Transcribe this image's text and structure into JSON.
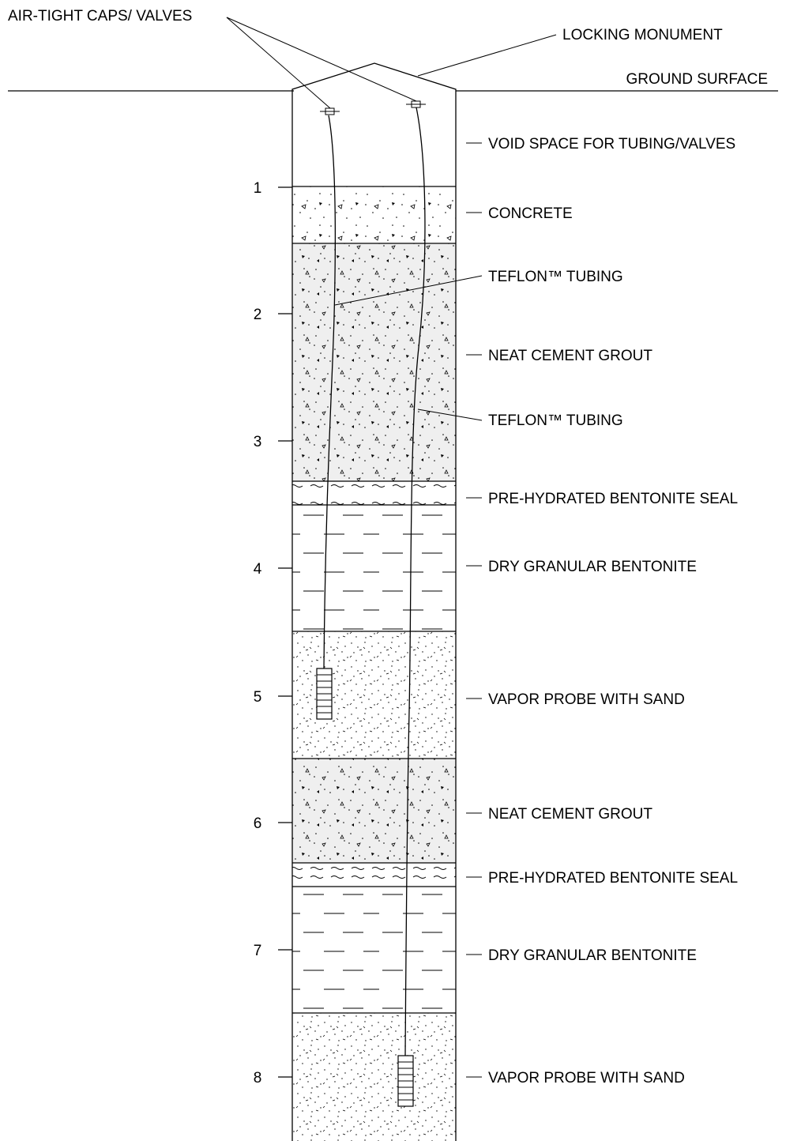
{
  "labels": {
    "caps": "AIR-TIGHT CAPS/ VALVES",
    "monument": "LOCKING MONUMENT",
    "ground": "GROUND SURFACE"
  },
  "layers": [
    {
      "id": "void",
      "label": "VOID SPACE FOR TUBING/VALVES",
      "pattern": "none"
    },
    {
      "id": "concrete",
      "label": "CONCRETE",
      "pattern": "concrete"
    },
    {
      "id": "grout1",
      "label": "NEAT CEMENT GROUT",
      "pattern": "grout"
    },
    {
      "id": "seal1",
      "label": "PRE-HYDRATED BENTONITE SEAL",
      "pattern": "seal"
    },
    {
      "id": "dry1",
      "label": "DRY GRANULAR BENTONITE",
      "pattern": "dry"
    },
    {
      "id": "sand1",
      "label": "VAPOR PROBE WITH SAND",
      "pattern": "sand"
    },
    {
      "id": "grout2",
      "label": "NEAT CEMENT GROUT",
      "pattern": "grout"
    },
    {
      "id": "seal2",
      "label": "PRE-HYDRATED BENTONITE SEAL",
      "pattern": "seal"
    },
    {
      "id": "dry2",
      "label": "DRY GRANULAR BENTONITE",
      "pattern": "dry"
    },
    {
      "id": "sand2",
      "label": "VAPOR PROBE WITH SAND",
      "pattern": "sand"
    }
  ],
  "tubing_labels": [
    "TEFLON™ TUBING",
    "TEFLON™ TUBING"
  ],
  "depth_scale": [
    "1",
    "2",
    "3",
    "4",
    "5",
    "6",
    "7",
    "8"
  ]
}
